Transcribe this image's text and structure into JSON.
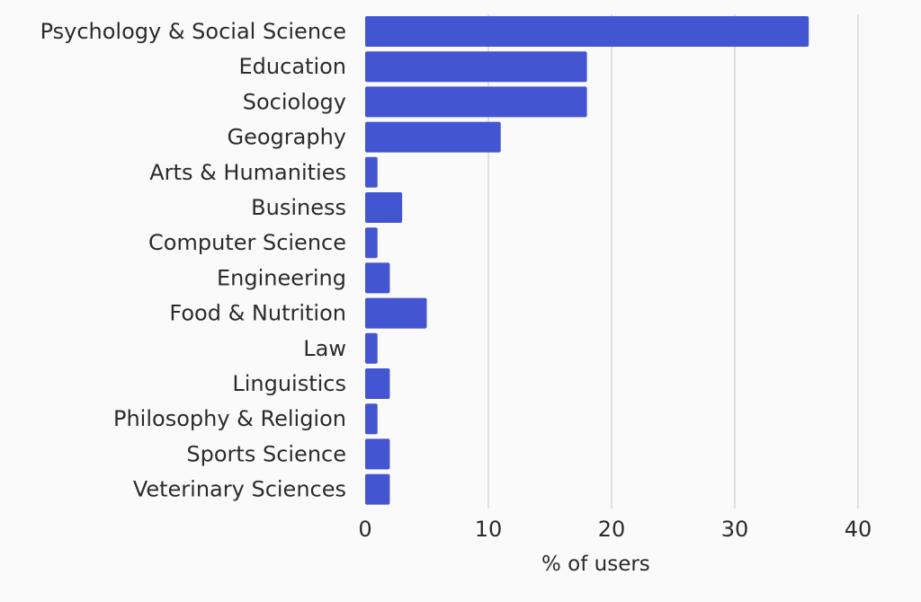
{
  "chart_data": {
    "type": "bar",
    "orientation": "horizontal",
    "categories": [
      "Psychology & Social Science",
      "Education",
      "Sociology",
      "Geography",
      "Arts & Humanities",
      "Business",
      "Computer Science",
      "Engineering",
      "Food & Nutrition",
      "Law",
      "Linguistics",
      "Philosophy & Religion",
      "Sports Science",
      "Veterinary Sciences"
    ],
    "values": [
      36,
      18,
      18,
      11,
      1,
      3,
      1,
      2,
      5,
      1,
      2,
      1,
      2,
      2
    ],
    "title": "",
    "xlabel": "% of users",
    "ylabel": "",
    "xlim": [
      0,
      40
    ],
    "xticks": [
      0,
      10,
      20,
      30,
      40
    ],
    "grid": true,
    "bar_color": "#4355d0",
    "grid_color": "#d8d8d8"
  }
}
